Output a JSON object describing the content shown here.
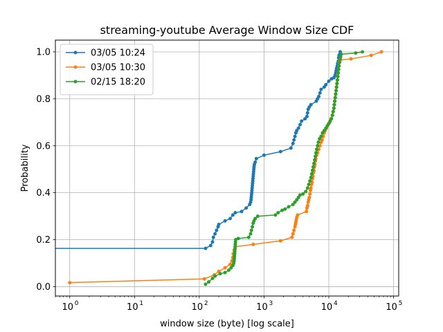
{
  "chart_data": {
    "type": "line",
    "title": "streaming-youtube Average Window Size CDF",
    "xlabel": "window size (byte) [log scale]",
    "ylabel": "Probability",
    "xscale": "log",
    "xlim": [
      0.6,
      120000
    ],
    "ylim": [
      -0.04,
      1.05
    ],
    "xticks": [
      {
        "base": "10",
        "exp": "0",
        "value": 1
      },
      {
        "base": "10",
        "exp": "1",
        "value": 10
      },
      {
        "base": "10",
        "exp": "2",
        "value": 100
      },
      {
        "base": "10",
        "exp": "3",
        "value": 1000
      },
      {
        "base": "10",
        "exp": "4",
        "value": 10000
      },
      {
        "base": "10",
        "exp": "5",
        "value": 100000
      }
    ],
    "yticks": [
      "0.0",
      "0.2",
      "0.4",
      "0.6",
      "0.8",
      "1.0"
    ],
    "grid": true,
    "legend_position": "top-left",
    "series": [
      {
        "name": "03/05 10:24",
        "color": "#1f77b4",
        "points": [
          [
            0.5,
            0.163
          ],
          [
            125,
            0.163
          ],
          [
            150,
            0.175
          ],
          [
            160,
            0.19
          ],
          [
            165,
            0.21
          ],
          [
            175,
            0.225
          ],
          [
            185,
            0.24
          ],
          [
            195,
            0.255
          ],
          [
            200,
            0.265
          ],
          [
            250,
            0.28
          ],
          [
            300,
            0.29
          ],
          [
            330,
            0.305
          ],
          [
            360,
            0.315
          ],
          [
            450,
            0.32
          ],
          [
            530,
            0.335
          ],
          [
            600,
            0.35
          ],
          [
            620,
            0.36
          ],
          [
            630,
            0.37
          ],
          [
            635,
            0.38
          ],
          [
            640,
            0.39
          ],
          [
            645,
            0.4
          ],
          [
            650,
            0.41
          ],
          [
            655,
            0.42
          ],
          [
            660,
            0.43
          ],
          [
            665,
            0.44
          ],
          [
            670,
            0.45
          ],
          [
            675,
            0.46
          ],
          [
            680,
            0.47
          ],
          [
            685,
            0.48
          ],
          [
            690,
            0.49
          ],
          [
            695,
            0.5
          ],
          [
            700,
            0.51
          ],
          [
            710,
            0.52
          ],
          [
            730,
            0.53
          ],
          [
            760,
            0.545
          ],
          [
            1000,
            0.56
          ],
          [
            1800,
            0.575
          ],
          [
            2600,
            0.59
          ],
          [
            2800,
            0.61
          ],
          [
            2900,
            0.625
          ],
          [
            3000,
            0.64
          ],
          [
            3100,
            0.655
          ],
          [
            3200,
            0.665
          ],
          [
            3400,
            0.675
          ],
          [
            3600,
            0.69
          ],
          [
            3800,
            0.705
          ],
          [
            4300,
            0.715
          ],
          [
            4600,
            0.725
          ],
          [
            4700,
            0.74
          ],
          [
            4800,
            0.755
          ],
          [
            5000,
            0.765
          ],
          [
            5300,
            0.775
          ],
          [
            6400,
            0.79
          ],
          [
            6700,
            0.8
          ],
          [
            7000,
            0.81
          ],
          [
            7300,
            0.825
          ],
          [
            7600,
            0.84
          ],
          [
            8500,
            0.85
          ],
          [
            9000,
            0.86
          ],
          [
            10000,
            0.875
          ],
          [
            11000,
            0.885
          ],
          [
            12000,
            0.89
          ],
          [
            12500,
            0.9
          ],
          [
            12800,
            0.91
          ],
          [
            13000,
            0.92
          ],
          [
            13200,
            0.93
          ],
          [
            13500,
            0.94
          ],
          [
            13700,
            0.95
          ],
          [
            14000,
            0.96
          ],
          [
            14200,
            0.975
          ],
          [
            14400,
            0.985
          ],
          [
            14800,
            0.99
          ],
          [
            15000,
            1.0
          ]
        ]
      },
      {
        "name": "03/05 10:30",
        "color": "#ff7f0e",
        "points": [
          [
            1,
            0.017
          ],
          [
            120,
            0.033
          ],
          [
            170,
            0.05
          ],
          [
            200,
            0.065
          ],
          [
            250,
            0.08
          ],
          [
            300,
            0.095
          ],
          [
            320,
            0.11
          ],
          [
            330,
            0.125
          ],
          [
            335,
            0.14
          ],
          [
            345,
            0.155
          ],
          [
            360,
            0.17
          ],
          [
            680,
            0.18
          ],
          [
            1800,
            0.195
          ],
          [
            2700,
            0.21
          ],
          [
            2800,
            0.225
          ],
          [
            2900,
            0.24
          ],
          [
            3000,
            0.255
          ],
          [
            3050,
            0.265
          ],
          [
            3100,
            0.275
          ],
          [
            3150,
            0.285
          ],
          [
            3200,
            0.295
          ],
          [
            3300,
            0.305
          ],
          [
            4500,
            0.32
          ],
          [
            4600,
            0.335
          ],
          [
            4700,
            0.345
          ],
          [
            4800,
            0.36
          ],
          [
            4900,
            0.37
          ],
          [
            5000,
            0.38
          ],
          [
            5100,
            0.395
          ],
          [
            5200,
            0.41
          ],
          [
            5300,
            0.42
          ],
          [
            5400,
            0.435
          ],
          [
            5500,
            0.445
          ],
          [
            5600,
            0.46
          ],
          [
            5700,
            0.47
          ],
          [
            5800,
            0.485
          ],
          [
            5900,
            0.495
          ],
          [
            6000,
            0.51
          ],
          [
            6100,
            0.52
          ],
          [
            6200,
            0.535
          ],
          [
            6300,
            0.545
          ],
          [
            6500,
            0.56
          ],
          [
            6700,
            0.57
          ],
          [
            7000,
            0.585
          ],
          [
            7300,
            0.6
          ],
          [
            7600,
            0.615
          ],
          [
            7900,
            0.625
          ],
          [
            8200,
            0.64
          ],
          [
            8500,
            0.655
          ],
          [
            8800,
            0.665
          ],
          [
            9200,
            0.675
          ],
          [
            9800,
            0.69
          ],
          [
            10300,
            0.7
          ],
          [
            10800,
            0.715
          ],
          [
            11300,
            0.73
          ],
          [
            11600,
            0.745
          ],
          [
            11900,
            0.76
          ],
          [
            12100,
            0.775
          ],
          [
            12300,
            0.79
          ],
          [
            12500,
            0.805
          ],
          [
            12700,
            0.82
          ],
          [
            12900,
            0.835
          ],
          [
            13100,
            0.85
          ],
          [
            13300,
            0.865
          ],
          [
            13500,
            0.88
          ],
          [
            13700,
            0.895
          ],
          [
            13900,
            0.91
          ],
          [
            14100,
            0.925
          ],
          [
            14300,
            0.94
          ],
          [
            14500,
            0.955
          ],
          [
            15000,
            0.965
          ],
          [
            22000,
            0.97
          ],
          [
            45000,
            0.985
          ],
          [
            65000,
            1.0
          ]
        ]
      },
      {
        "name": "02/15 18:20",
        "color": "#2ca02c",
        "points": [
          [
            125,
            0.01
          ],
          [
            140,
            0.02
          ],
          [
            160,
            0.035
          ],
          [
            175,
            0.045
          ],
          [
            210,
            0.055
          ],
          [
            250,
            0.06
          ],
          [
            285,
            0.07
          ],
          [
            310,
            0.08
          ],
          [
            330,
            0.09
          ],
          [
            340,
            0.1
          ],
          [
            345,
            0.11
          ],
          [
            348,
            0.12
          ],
          [
            350,
            0.13
          ],
          [
            352,
            0.14
          ],
          [
            354,
            0.15
          ],
          [
            356,
            0.16
          ],
          [
            358,
            0.17
          ],
          [
            360,
            0.18
          ],
          [
            362,
            0.19
          ],
          [
            365,
            0.2
          ],
          [
            400,
            0.205
          ],
          [
            580,
            0.21
          ],
          [
            620,
            0.225
          ],
          [
            640,
            0.24
          ],
          [
            660,
            0.255
          ],
          [
            680,
            0.27
          ],
          [
            700,
            0.28
          ],
          [
            730,
            0.29
          ],
          [
            800,
            0.3
          ],
          [
            1500,
            0.305
          ],
          [
            1650,
            0.315
          ],
          [
            1900,
            0.325
          ],
          [
            2100,
            0.33
          ],
          [
            2400,
            0.34
          ],
          [
            2800,
            0.35
          ],
          [
            3000,
            0.36
          ],
          [
            3200,
            0.37
          ],
          [
            3400,
            0.38
          ],
          [
            3600,
            0.39
          ],
          [
            4000,
            0.395
          ],
          [
            4400,
            0.405
          ],
          [
            4700,
            0.42
          ],
          [
            4900,
            0.435
          ],
          [
            5100,
            0.45
          ],
          [
            5300,
            0.465
          ],
          [
            5450,
            0.48
          ],
          [
            5600,
            0.495
          ],
          [
            5750,
            0.51
          ],
          [
            5900,
            0.525
          ],
          [
            6050,
            0.54
          ],
          [
            6200,
            0.555
          ],
          [
            6350,
            0.57
          ],
          [
            6500,
            0.585
          ],
          [
            6700,
            0.6
          ],
          [
            6900,
            0.615
          ],
          [
            7200,
            0.63
          ],
          [
            7600,
            0.64
          ],
          [
            8000,
            0.655
          ],
          [
            8500,
            0.665
          ],
          [
            9000,
            0.675
          ],
          [
            9500,
            0.685
          ],
          [
            10000,
            0.695
          ],
          [
            10500,
            0.705
          ],
          [
            11000,
            0.715
          ],
          [
            11400,
            0.73
          ],
          [
            11700,
            0.745
          ],
          [
            12000,
            0.76
          ],
          [
            12200,
            0.775
          ],
          [
            12400,
            0.79
          ],
          [
            12600,
            0.805
          ],
          [
            12800,
            0.82
          ],
          [
            13000,
            0.835
          ],
          [
            13200,
            0.85
          ],
          [
            13400,
            0.865
          ],
          [
            13600,
            0.88
          ],
          [
            13800,
            0.895
          ],
          [
            14000,
            0.91
          ],
          [
            14200,
            0.925
          ],
          [
            14400,
            0.94
          ],
          [
            14700,
            0.955
          ],
          [
            15000,
            0.97
          ],
          [
            15200,
            0.98
          ],
          [
            15500,
            0.99
          ],
          [
            26000,
            0.995
          ],
          [
            33000,
            1.0
          ]
        ]
      }
    ]
  }
}
